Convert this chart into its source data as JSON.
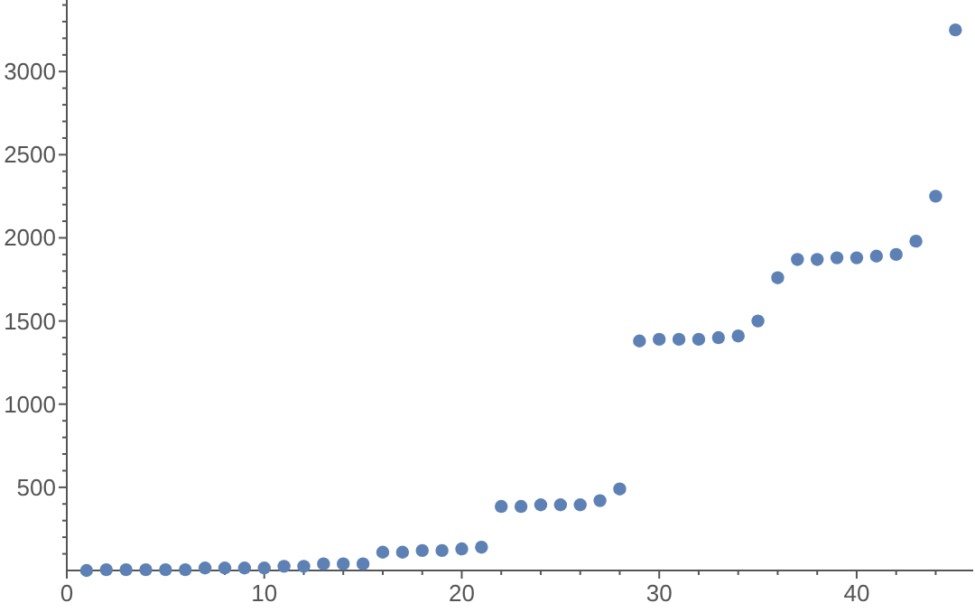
{
  "chart_data": {
    "type": "scatter",
    "x": [
      1,
      2,
      3,
      4,
      5,
      6,
      7,
      8,
      9,
      10,
      11,
      12,
      13,
      14,
      15,
      16,
      17,
      18,
      19,
      20,
      21,
      22,
      23,
      24,
      25,
      26,
      27,
      28,
      29,
      30,
      31,
      32,
      33,
      34,
      35,
      36,
      37,
      38,
      39,
      40,
      41,
      42,
      43,
      44,
      45
    ],
    "series": [
      {
        "color": "#5e81b5",
        "values": [
          0,
          5,
          5,
          5,
          5,
          5,
          15,
          15,
          15,
          15,
          25,
          25,
          40,
          40,
          40,
          110,
          110,
          120,
          120,
          130,
          140,
          385,
          385,
          395,
          395,
          395,
          420,
          490,
          1380,
          1390,
          1390,
          1390,
          1400,
          1410,
          1500,
          1760,
          1870,
          1870,
          1880,
          1880,
          1890,
          1900,
          1980,
          2250,
          3250
        ]
      }
    ],
    "xlim": [
      0,
      45.9
    ],
    "ylim": [
      0,
      3430
    ],
    "marker": "circle",
    "grid": false,
    "tick_labels": true,
    "xticks": [
      0,
      {
        "value": 2,
        "label": null
      },
      {
        "value": 4,
        "label": null
      },
      {
        "value": 6,
        "label": null
      },
      {
        "value": 8,
        "label": null
      },
      10,
      {
        "value": 12,
        "label": null
      },
      {
        "value": 14,
        "label": null
      },
      {
        "value": 16,
        "label": null
      },
      {
        "value": 18,
        "label": null
      },
      20,
      {
        "value": 22,
        "label": null
      },
      {
        "value": 24,
        "label": null
      },
      {
        "value": 26,
        "label": null
      },
      {
        "value": 28,
        "label": null
      },
      30,
      {
        "value": 32,
        "label": null
      },
      {
        "value": 34,
        "label": null
      },
      {
        "value": 36,
        "label": null
      },
      {
        "value": 38,
        "label": null
      },
      40,
      {
        "value": 42,
        "label": null
      },
      {
        "value": 44,
        "label": null
      }
    ],
    "yticks": [
      {
        "value": 100,
        "label": null
      },
      {
        "value": 200,
        "label": null
      },
      {
        "value": 300,
        "label": null
      },
      {
        "value": 400,
        "label": null
      },
      500,
      {
        "value": 600,
        "label": null
      },
      {
        "value": 700,
        "label": null
      },
      {
        "value": 800,
        "label": null
      },
      {
        "value": 900,
        "label": null
      },
      1000,
      {
        "value": 1100,
        "label": null
      },
      {
        "value": 1200,
        "label": null
      },
      {
        "value": 1300,
        "label": null
      },
      {
        "value": 1400,
        "label": null
      },
      1500,
      {
        "value": 1600,
        "label": null
      },
      {
        "value": 1700,
        "label": null
      },
      {
        "value": 1800,
        "label": null
      },
      {
        "value": 1900,
        "label": null
      },
      2000,
      {
        "value": 2100,
        "label": null
      },
      {
        "value": 2200,
        "label": null
      },
      {
        "value": 2300,
        "label": null
      },
      {
        "value": 2400,
        "label": null
      },
      2500,
      {
        "value": 2600,
        "label": null
      },
      {
        "value": 2700,
        "label": null
      },
      {
        "value": 2800,
        "label": null
      },
      {
        "value": 2900,
        "label": null
      },
      3000,
      {
        "value": 3100,
        "label": null
      },
      {
        "value": 3200,
        "label": null
      },
      {
        "value": 3300,
        "label": null
      },
      {
        "value": 3400,
        "label": null
      }
    ]
  }
}
